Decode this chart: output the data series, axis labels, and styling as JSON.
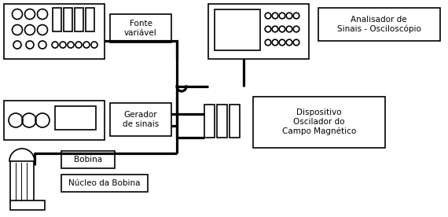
{
  "bg": "#ffffff",
  "lc": "#000000",
  "lw": 1.2,
  "blw": 2.3,
  "fs": 7.5,
  "labels": {
    "fonte": "Fonte\nvariável",
    "gerador": "Gerador\nde sinais",
    "analisador": "Analisador de\nSinais - Osciloscópio",
    "dispositivo": "Dispositivo\nOscilador do\nCampo Magnético",
    "bobina": "Bobina",
    "nucleo": "Núcleo da Bobina"
  }
}
